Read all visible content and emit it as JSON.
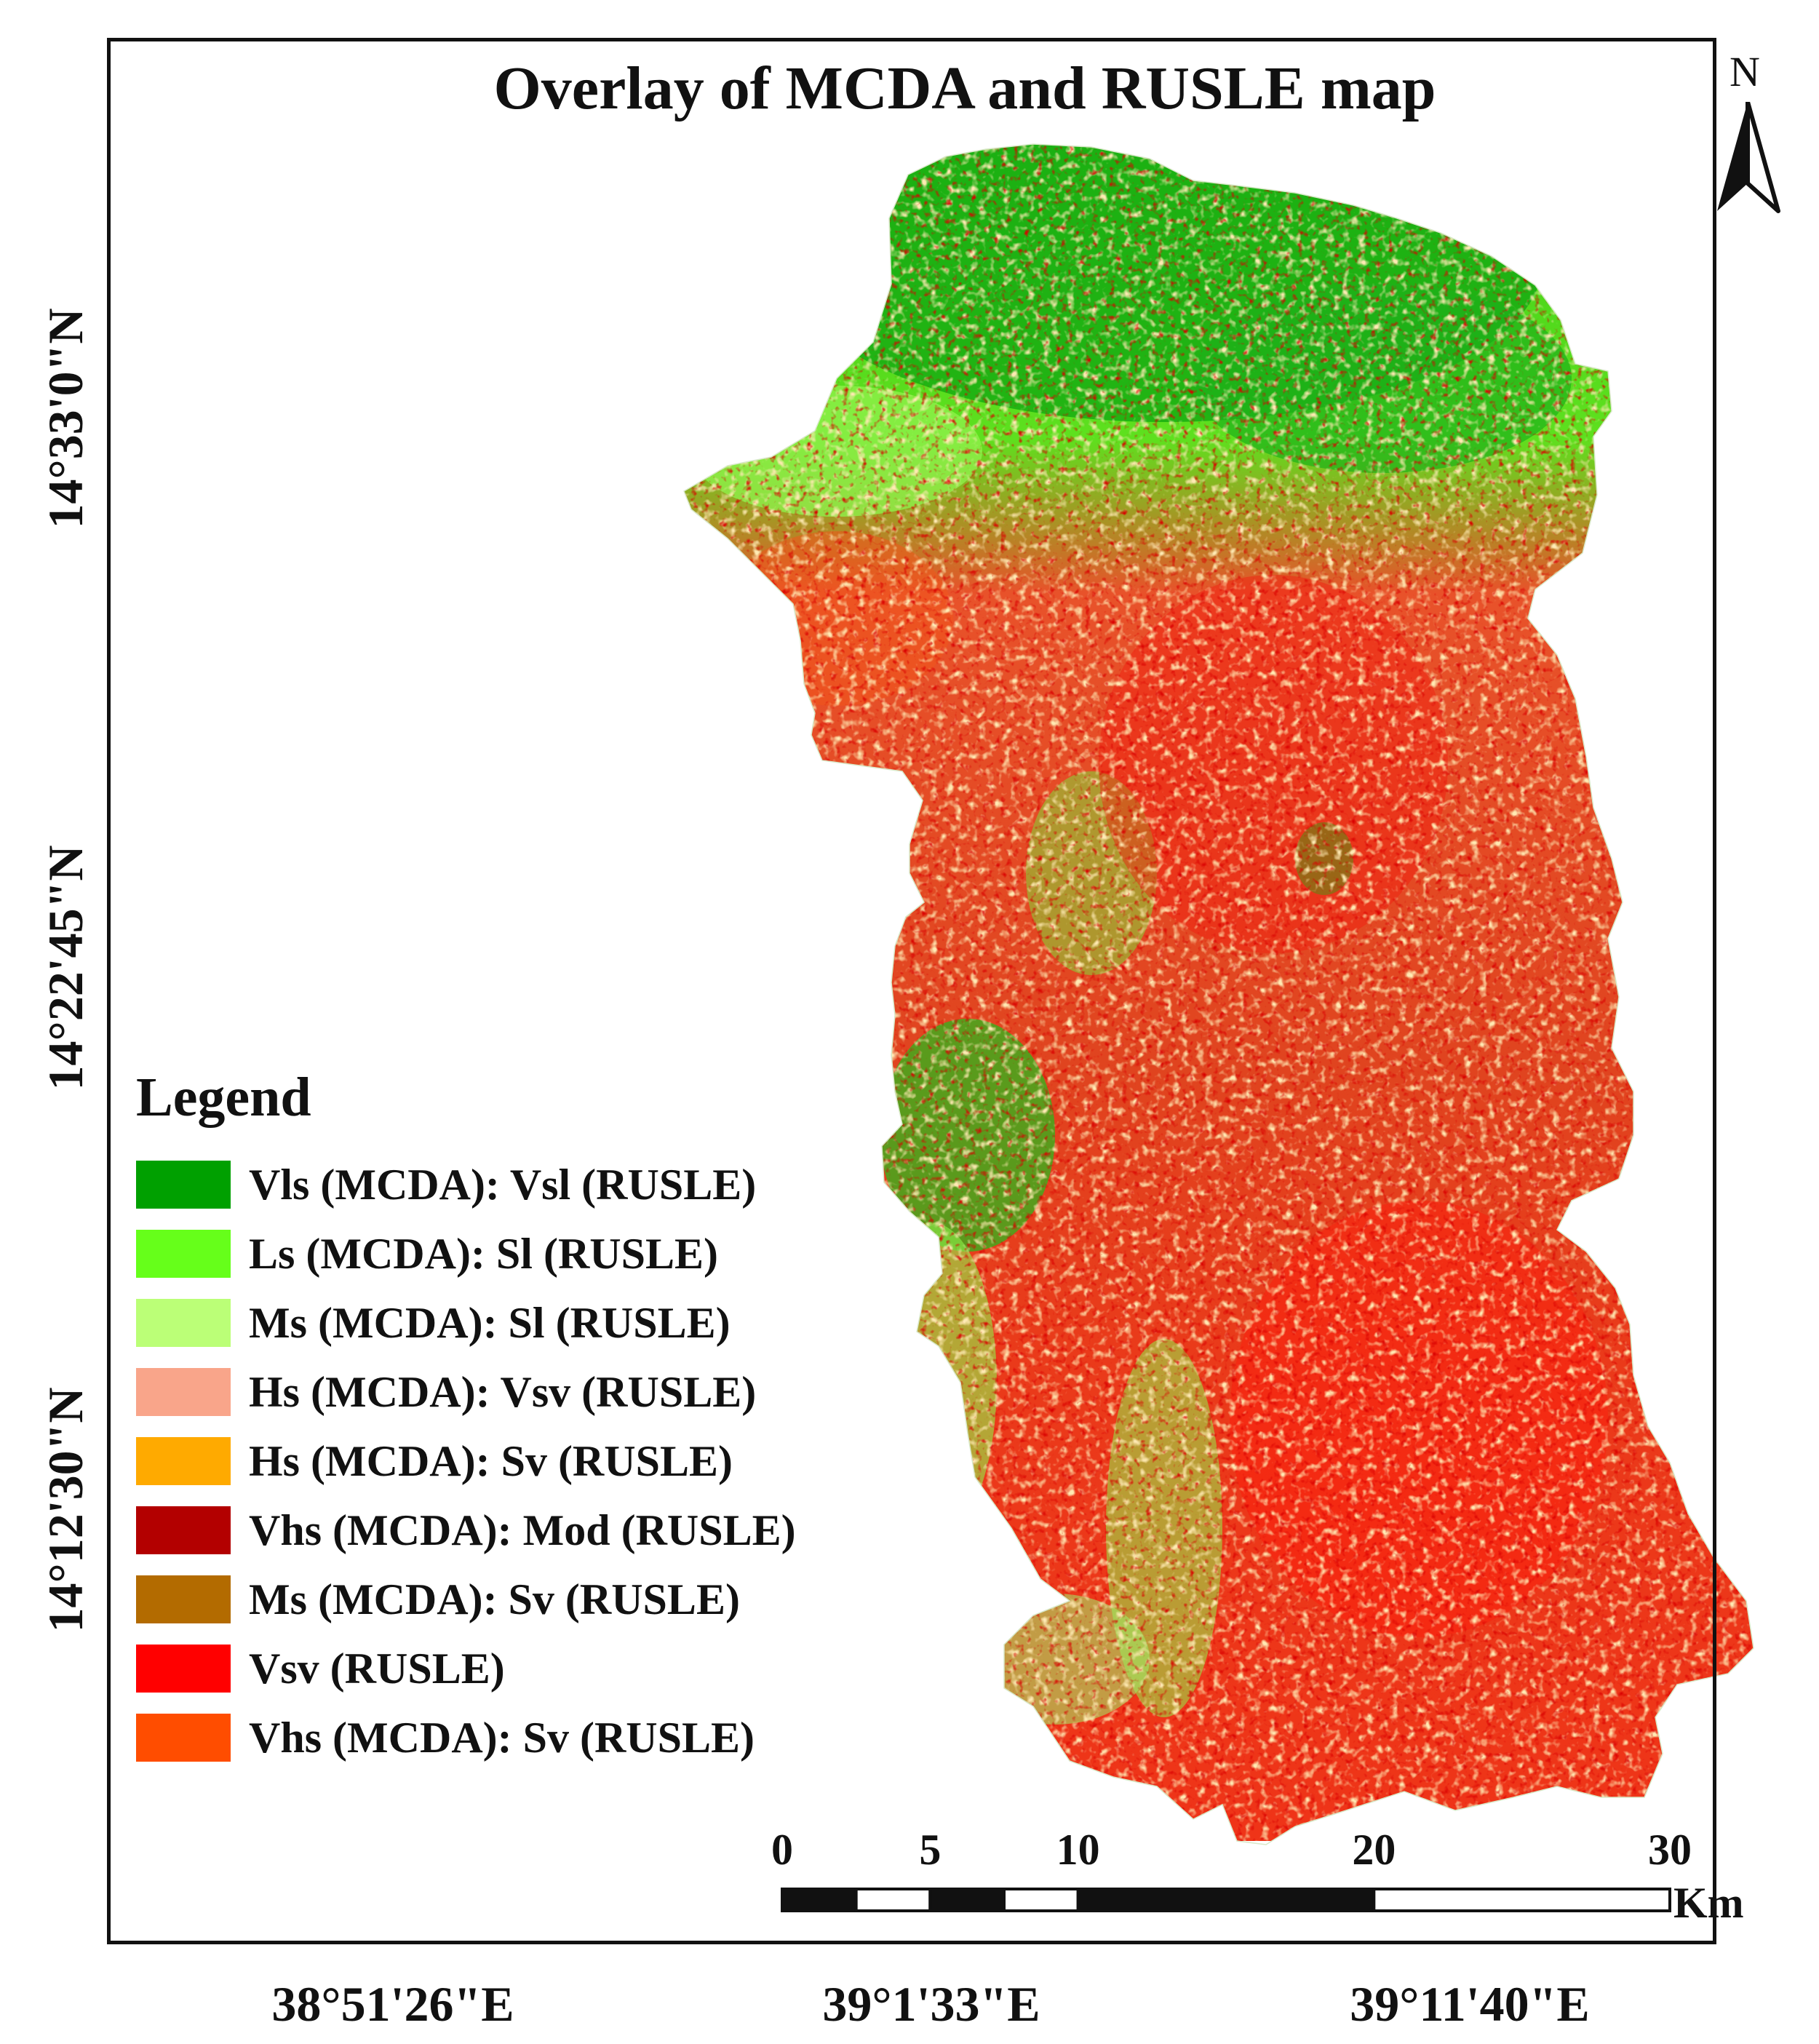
{
  "map": {
    "title": "Overlay of MCDA and RUSLE map",
    "north_label": "N",
    "latitude_labels": [
      "14°33'0\"N",
      "14°22'45\"N",
      "14°12'30\"N"
    ],
    "longitude_labels": [
      "38°51'26\"E",
      "39°1'33\"E",
      "39°11'40\"E"
    ]
  },
  "legend": {
    "title": "Legend",
    "items": [
      {
        "label": "Vls (MCDA): Vsl (RUSLE)",
        "color": "#00a000"
      },
      {
        "label": "Ls (MCDA): Sl (RUSLE)",
        "color": "#66ff1a"
      },
      {
        "label": "Ms (MCDA): Sl (RUSLE)",
        "color": "#bbff77"
      },
      {
        "label": "Hs (MCDA): Vsv (RUSLE)",
        "color": "#f9a58a"
      },
      {
        "label": "Hs (MCDA): Sv (RUSLE)",
        "color": "#ffaa00"
      },
      {
        "label": "Vhs (MCDA): Mod (RUSLE)",
        "color": "#b30000"
      },
      {
        "label": "Ms (MCDA): Sv (RUSLE)",
        "color": "#b36b00"
      },
      {
        "label": "Vsv (RUSLE)",
        "color": "#ff0000"
      },
      {
        "label": "Vhs (MCDA): Sv (RUSLE)",
        "color": "#ff4d00"
      }
    ]
  },
  "scale_bar": {
    "ticks": [
      "0",
      "5",
      "10",
      "20",
      "30"
    ],
    "tick_values": [
      0,
      5,
      10,
      20,
      30
    ],
    "unit": "Km"
  }
}
